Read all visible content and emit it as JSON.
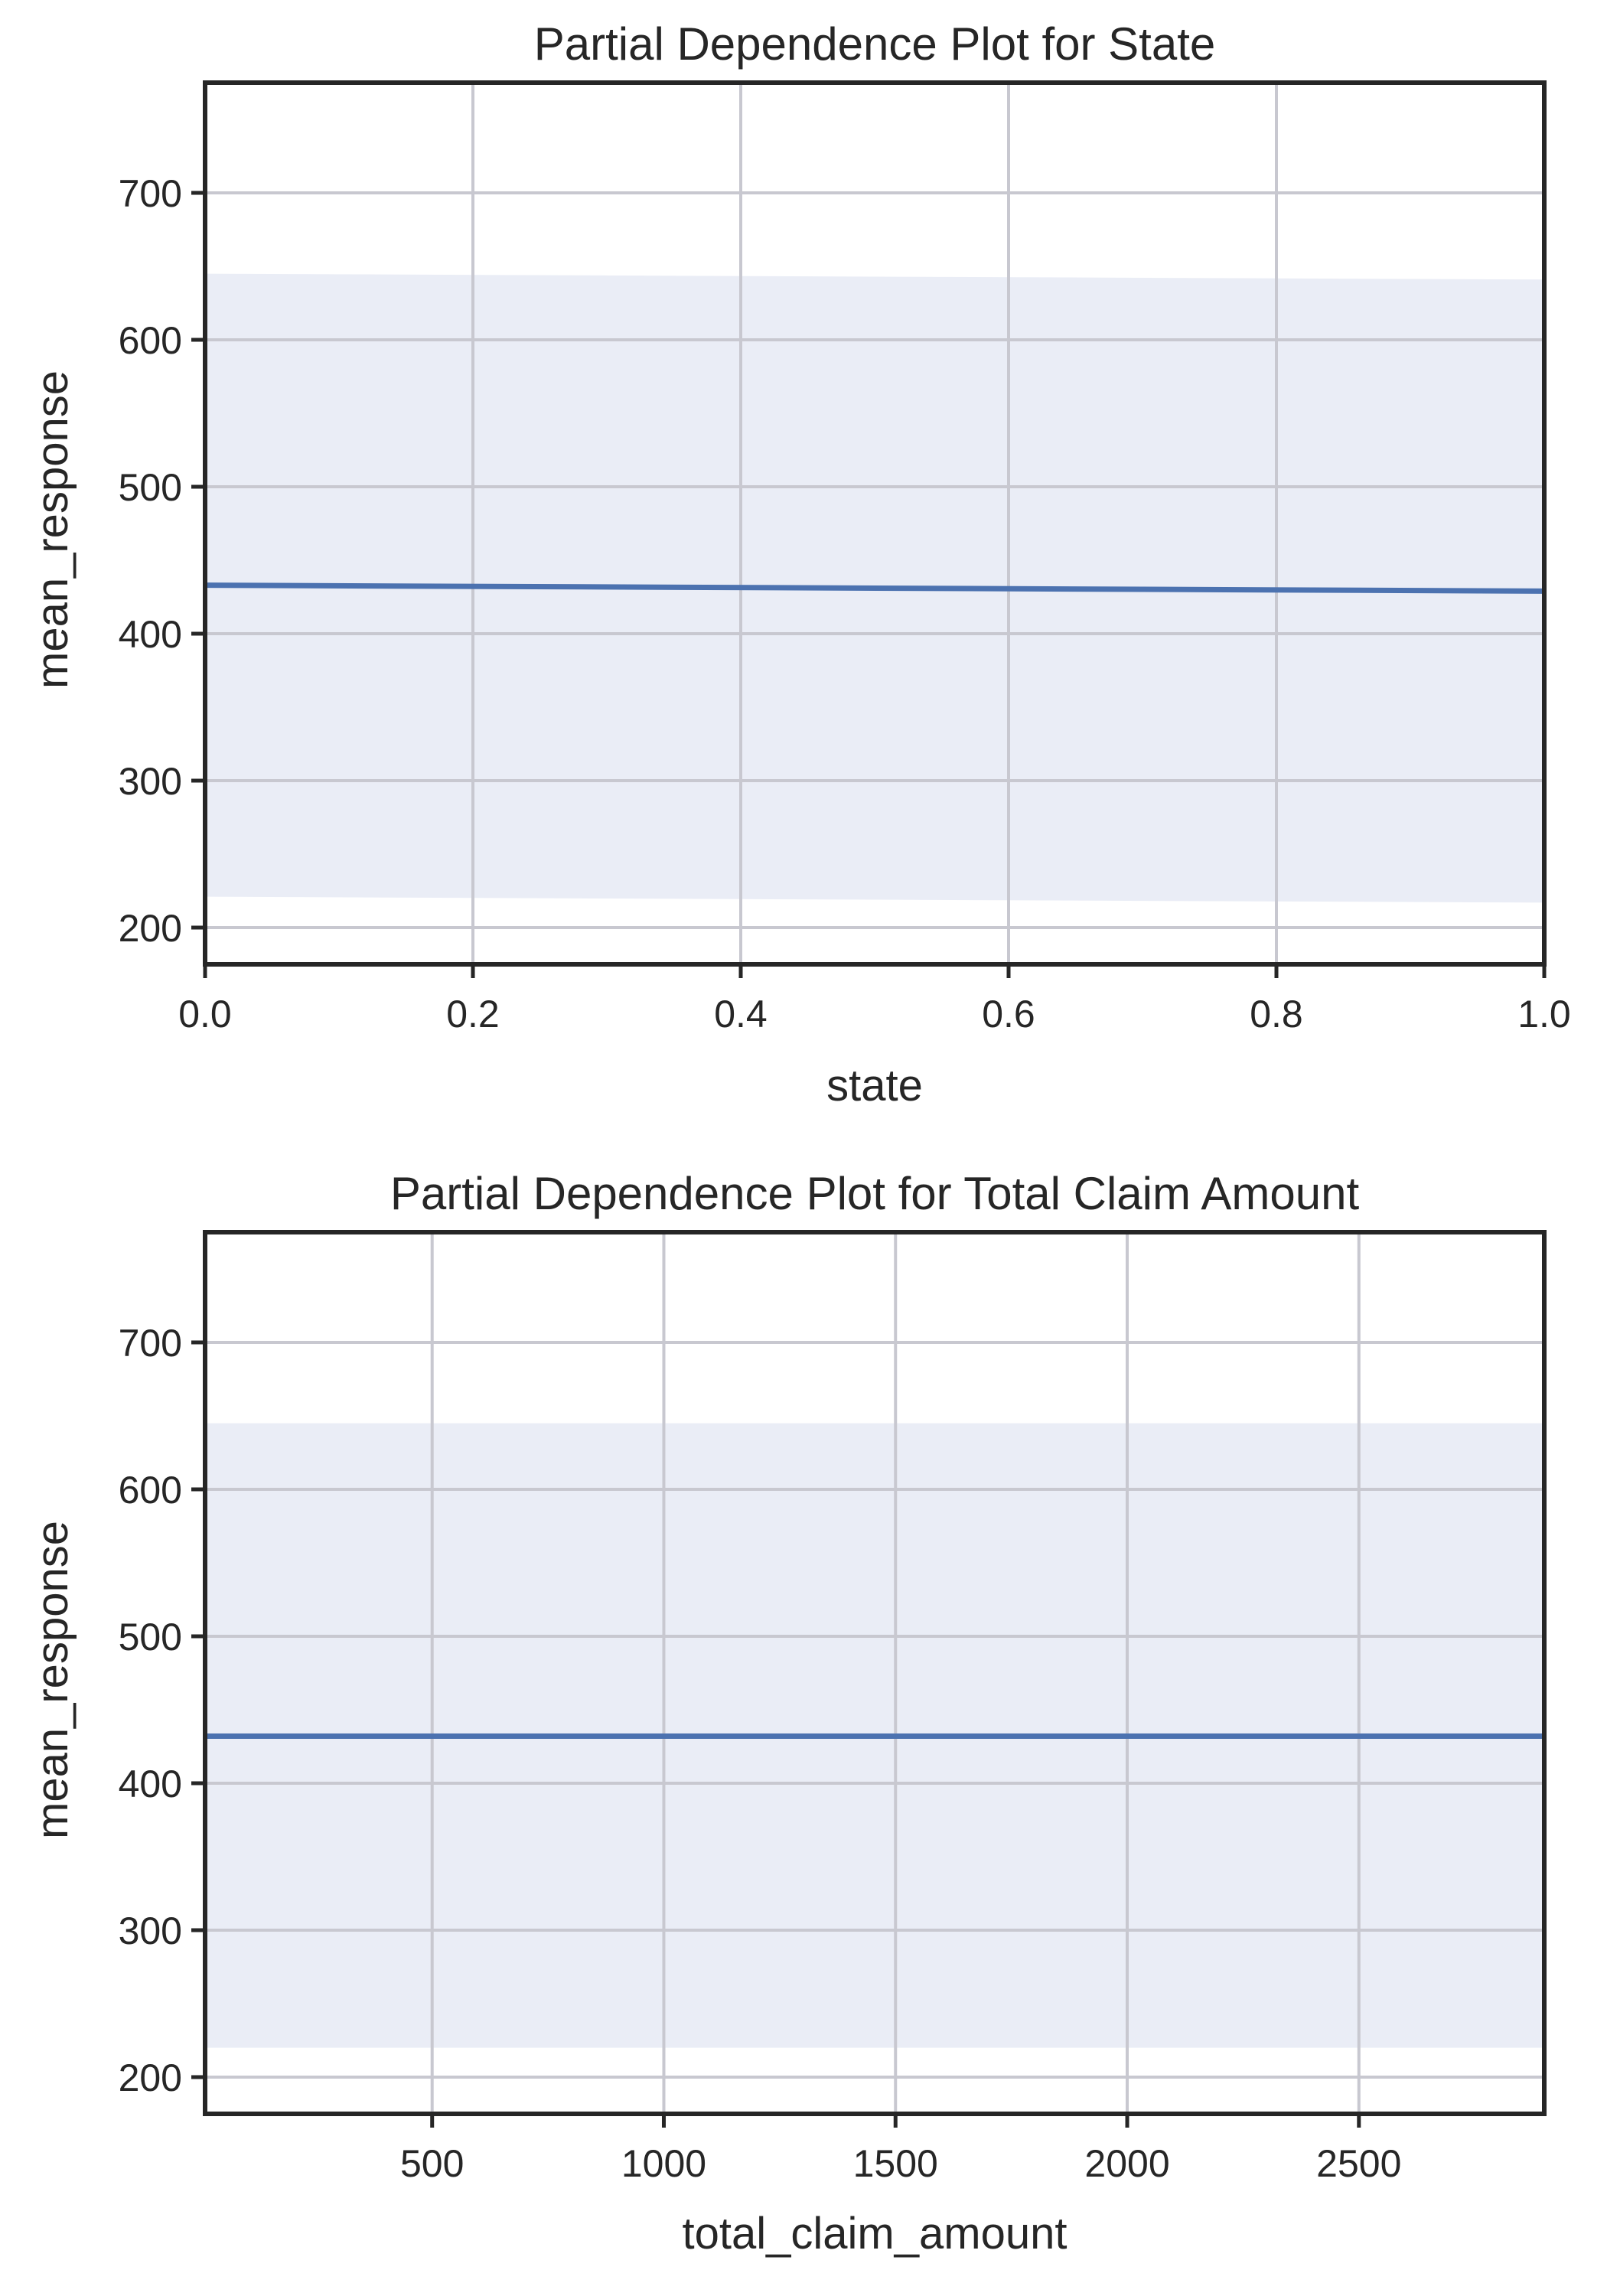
{
  "figure": {
    "background": "#ffffff",
    "colors": {
      "line": "#4c72b0",
      "band": "#eaedf6",
      "grid": "#c8c8d0",
      "frame": "#262626",
      "text": "#262626"
    }
  },
  "chart_data": [
    {
      "type": "line",
      "title": "Partial Dependence Plot for State",
      "xlabel": "state",
      "ylabel": "mean_response",
      "xlim": [
        0.0,
        1.0
      ],
      "ylim": [
        175,
        775
      ],
      "xticks": [
        0.0,
        0.2,
        0.4,
        0.6,
        0.8,
        1.0
      ],
      "xtick_labels": [
        "0.0",
        "0.2",
        "0.4",
        "0.6",
        "0.8",
        "1.0"
      ],
      "yticks": [
        200,
        300,
        400,
        500,
        600,
        700
      ],
      "ytick_labels": [
        "200",
        "300",
        "400",
        "500",
        "600",
        "700"
      ],
      "grid": true,
      "legend": "none",
      "series": [
        {
          "x": [
            0.0,
            1.0
          ],
          "y": [
            433,
            429
          ],
          "lower": [
            221,
            217
          ],
          "upper": [
            645,
            641
          ]
        }
      ]
    },
    {
      "type": "line",
      "title": "Partial Dependence Plot for Total Claim Amount",
      "xlabel": "total_claim_amount",
      "ylabel": "mean_response",
      "xlim": [
        10,
        2900
      ],
      "ylim": [
        175,
        775
      ],
      "xticks": [
        500,
        1000,
        1500,
        2000,
        2500
      ],
      "xtick_labels": [
        "500",
        "1000",
        "1500",
        "2000",
        "2500"
      ],
      "yticks": [
        200,
        300,
        400,
        500,
        600,
        700
      ],
      "ytick_labels": [
        "200",
        "300",
        "400",
        "500",
        "600",
        "700"
      ],
      "grid": true,
      "legend": "none",
      "series": [
        {
          "x": [
            10,
            2900
          ],
          "y": [
            432,
            432
          ],
          "lower": [
            220,
            220
          ],
          "upper": [
            645,
            645
          ]
        }
      ]
    }
  ]
}
